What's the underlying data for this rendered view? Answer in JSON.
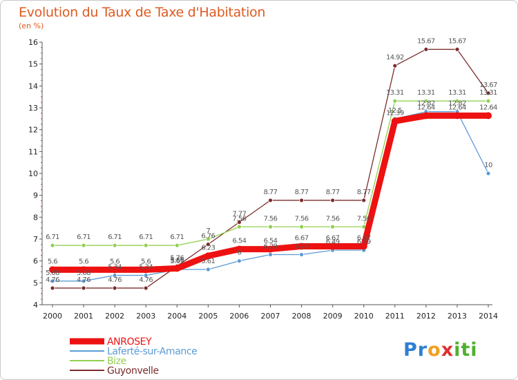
{
  "header": {
    "title": "Evolution du Taux de Taxe d'Habitation",
    "unit": "(en %)"
  },
  "logo": {
    "text": "Proxiti",
    "letters": [
      "P",
      "r",
      "o",
      "x",
      "i",
      "t",
      "i"
    ],
    "colors": [
      "#2e7fd3",
      "#2e7fd3",
      "#f0a020",
      "#e03030",
      "#4fb030",
      "#4fb030",
      "#4fb030"
    ]
  },
  "chart_data": {
    "type": "line",
    "x": [
      2000,
      2001,
      2002,
      2003,
      2004,
      2005,
      2006,
      2007,
      2008,
      2009,
      2010,
      2011,
      2012,
      2013,
      2014
    ],
    "xlabel": "",
    "ylabel": "",
    "ylim": [
      4,
      16
    ],
    "yticks": [
      4,
      5,
      6,
      7,
      8,
      9,
      10,
      11,
      12,
      13,
      14,
      15,
      16
    ],
    "grid": false,
    "legend": "bottom-left",
    "series": [
      {
        "name": "ANROSEY",
        "color": "#ee1111",
        "values": [
          5.6,
          5.6,
          5.6,
          5.6,
          5.66,
          6.23,
          6.54,
          6.54,
          6.67,
          6.67,
          6.67,
          12.39,
          12.64,
          12.64,
          12.64
        ],
        "labels": [
          "5.6",
          "5.6",
          "5.6",
          "5.6",
          "5.66",
          "6.23",
          "6.54",
          "6.54",
          "6.67",
          "6.67",
          "6.67",
          "12.39",
          "12.64",
          "12.64",
          "12.64"
        ]
      },
      {
        "name": "Laferté-sur-Amance",
        "color": "#5b9bd5",
        "values": [
          5.08,
          5.08,
          5.34,
          5.34,
          5.61,
          5.61,
          6.0,
          6.29,
          6.29,
          6.49,
          6.49,
          12.5,
          12.82,
          12.82,
          10.0
        ],
        "labels": [
          "5.08",
          "5.08",
          "5.34",
          "5.34",
          "5.61",
          "5.61",
          "6",
          "6.29",
          "6.29",
          "6.49",
          "6.49",
          "12.5",
          "12.82",
          "12.82",
          "10"
        ]
      },
      {
        "name": "Bize",
        "color": "#92d050",
        "values": [
          6.71,
          6.71,
          6.71,
          6.71,
          6.71,
          7.0,
          7.56,
          7.56,
          7.56,
          7.56,
          7.56,
          13.31,
          13.31,
          13.31,
          13.31
        ],
        "labels": [
          "6.71",
          "6.71",
          "6.71",
          "6.71",
          "6.71",
          "7",
          "7.56",
          "7.56",
          "7.56",
          "7.56",
          "7.56",
          "13.31",
          "13.31",
          "13.31",
          "13.31"
        ]
      },
      {
        "name": "Guyonvelle",
        "color": "#7b2c2c",
        "values": [
          4.76,
          4.76,
          4.76,
          4.76,
          5.76,
          6.76,
          7.77,
          8.77,
          8.77,
          8.77,
          8.77,
          14.92,
          15.67,
          15.67,
          13.67
        ],
        "labels": [
          "4.76",
          "4.76",
          "4.76",
          "4.76",
          "5.76",
          "6.76",
          "7.77",
          "8.77",
          "8.77",
          "8.77",
          "8.77",
          "14.92",
          "15.67",
          "15.67",
          "13.67"
        ]
      }
    ]
  }
}
